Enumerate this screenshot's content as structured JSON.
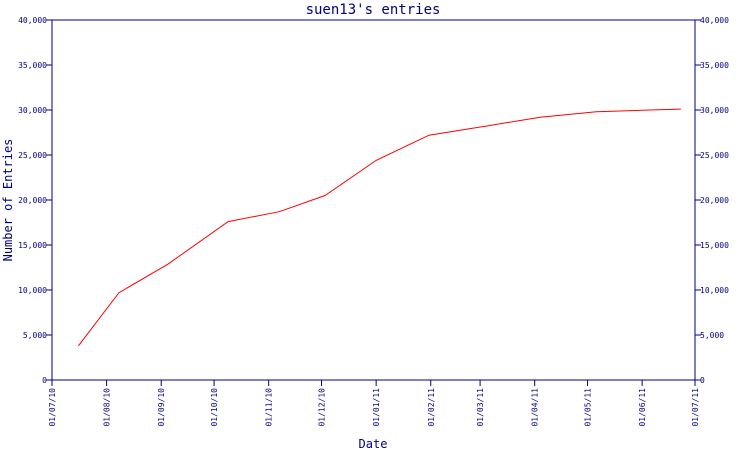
{
  "chart_data": {
    "type": "line",
    "title": "suen13's entries",
    "xlabel": "Date",
    "ylabel": "Number of Entries",
    "x_ticks": [
      "01/07/10",
      "01/08/10",
      "01/09/10",
      "01/10/10",
      "01/11/10",
      "01/12/10",
      "01/01/11",
      "01/02/11",
      "01/03/11",
      "01/04/11",
      "01/05/11",
      "01/06/11",
      "01/07/11"
    ],
    "y_ticks": [
      "0",
      "5,000",
      "10,000",
      "15,000",
      "20,000",
      "25,000",
      "30,000",
      "35,000",
      "40,000"
    ],
    "ylim": [
      0,
      40000
    ],
    "xlim": [
      "2010-07-01",
      "2011-07-01"
    ],
    "grid": false,
    "colors": {
      "axis": "#000080",
      "series": "#ff0000",
      "text": "#000080"
    },
    "series": [
      {
        "points": [
          {
            "x": "2010-07-16",
            "y": 3800
          },
          {
            "x": "2010-08-08",
            "y": 9700
          },
          {
            "x": "2010-09-05",
            "y": 12900
          },
          {
            "x": "2010-10-09",
            "y": 17600
          },
          {
            "x": "2010-11-07",
            "y": 18700
          },
          {
            "x": "2010-12-03",
            "y": 20500
          },
          {
            "x": "2011-01-01",
            "y": 24400
          },
          {
            "x": "2011-01-31",
            "y": 27200
          },
          {
            "x": "2011-03-04",
            "y": 28200
          },
          {
            "x": "2011-04-04",
            "y": 29200
          },
          {
            "x": "2011-05-06",
            "y": 29800
          },
          {
            "x": "2011-06-05",
            "y": 30000
          },
          {
            "x": "2011-06-23",
            "y": 30100
          }
        ]
      }
    ]
  }
}
